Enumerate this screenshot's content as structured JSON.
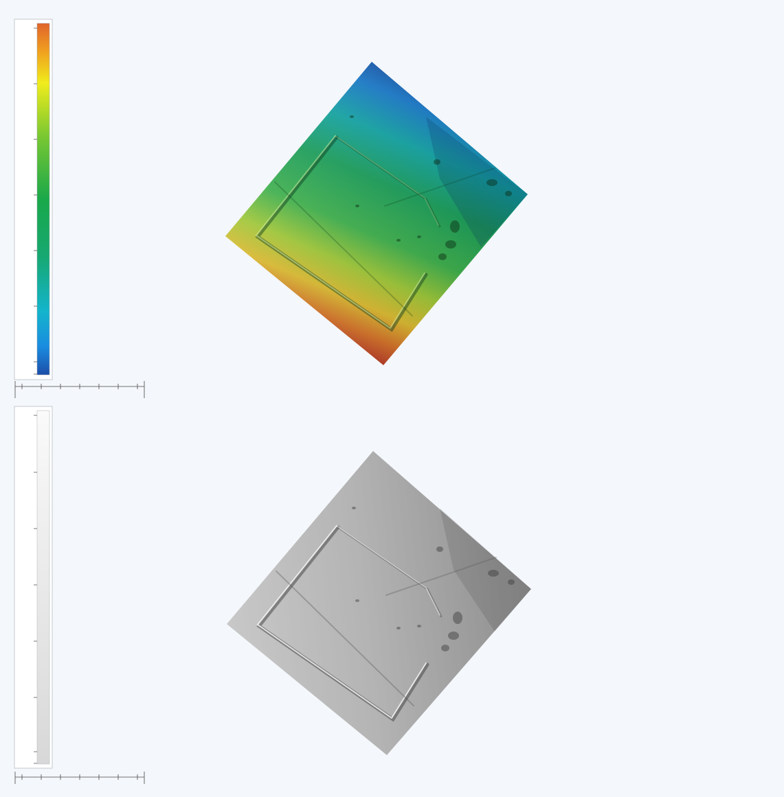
{
  "colors": {
    "background": "#f4f7fb",
    "ramp_top": "#e0642a",
    "ramp_yellow": "#f0ec1c",
    "ramp_green": "#1aa84a",
    "ramp_cyan": "#14b4cc",
    "ramp_bottom": "#1c4ea8",
    "grey_ramp_top": "#fafafa",
    "grey_ramp_bottom": "#d8d8d8"
  },
  "panels": [
    {
      "id": "elevation-colour",
      "legend_type": "color-ramp"
    },
    {
      "id": "hillshade-grey",
      "legend_type": "grey-ramp"
    }
  ]
}
